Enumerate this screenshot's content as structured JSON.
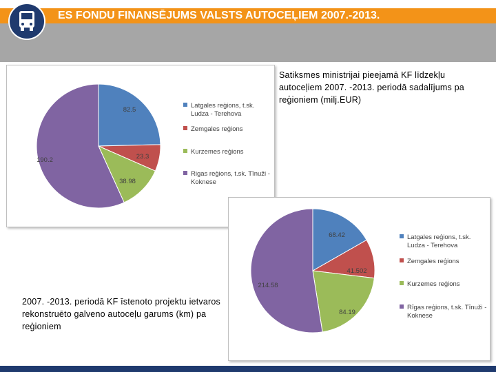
{
  "header": {
    "title": "ES FONDU FINANSĒJUMS VALSTS AUTOCEĻIEM 2007.-2013.",
    "colors": {
      "title_bar": "#f39318",
      "band": "#a6a6a6",
      "logo": "#1f3a6e"
    },
    "logo_icon": "bus-icon"
  },
  "captions": {
    "top_right": "Satiksmes ministrijai pieejamā KF līdzekļu autoceļiem 2007. -2013. periodā sadalījums pa reģioniem  (milj.EUR)",
    "bottom_left": "2007. -2013. periodā KF  īstenoto projektu ietvaros rekonstruēto  galveno autoceļu garums (km)   pa reģioniem"
  },
  "chart_data": [
    {
      "type": "pie",
      "categories": [
        "Latgales reģions, t.sk. Ludza - Terehova",
        "Zemgales reģions",
        "Kurzemes reģions",
        "Rīgas reģions, t.sk. Tīnūži - Koknese"
      ],
      "values": [
        82.5,
        23.3,
        38.98,
        190.2
      ],
      "value_labels": [
        "82.5",
        "23.3",
        "38.98",
        "190.2"
      ],
      "colors": [
        "#4f81bd",
        "#c0504d",
        "#9bbb59",
        "#8064a2"
      ],
      "legend": [
        [
          "Latgales reģions, t.sk.",
          "Ludza - Terehova"
        ],
        [
          "Zemgales reģions"
        ],
        [
          "Kurzemes reģions"
        ],
        [
          "Rigas reģions, t.sk. Tīnuži -",
          "Koknese"
        ]
      ],
      "legend_position": "right"
    },
    {
      "type": "pie",
      "categories": [
        "Latgales reģions, t.sk. Ludza - Terehova",
        "Zemgales reģions",
        "Kurzemes reģions",
        "Rīgas reģions, t.sk. Tīnūži - Koknese"
      ],
      "values": [
        68.42,
        41.502,
        84.19,
        214.58
      ],
      "value_labels": [
        "68.42",
        "41.502",
        "84.19",
        "214.58"
      ],
      "colors": [
        "#4f81bd",
        "#c0504d",
        "#9bbb59",
        "#8064a2"
      ],
      "legend": [
        [
          "Latgales reģions, t.sk.",
          "Ludza - Terehova"
        ],
        [
          "Zemgales reģions"
        ],
        [
          "Kurzemes reģions"
        ],
        [
          "Rīgas reģions, t.sk. Tīnuži -",
          "Koknese"
        ]
      ],
      "legend_position": "right"
    }
  ]
}
